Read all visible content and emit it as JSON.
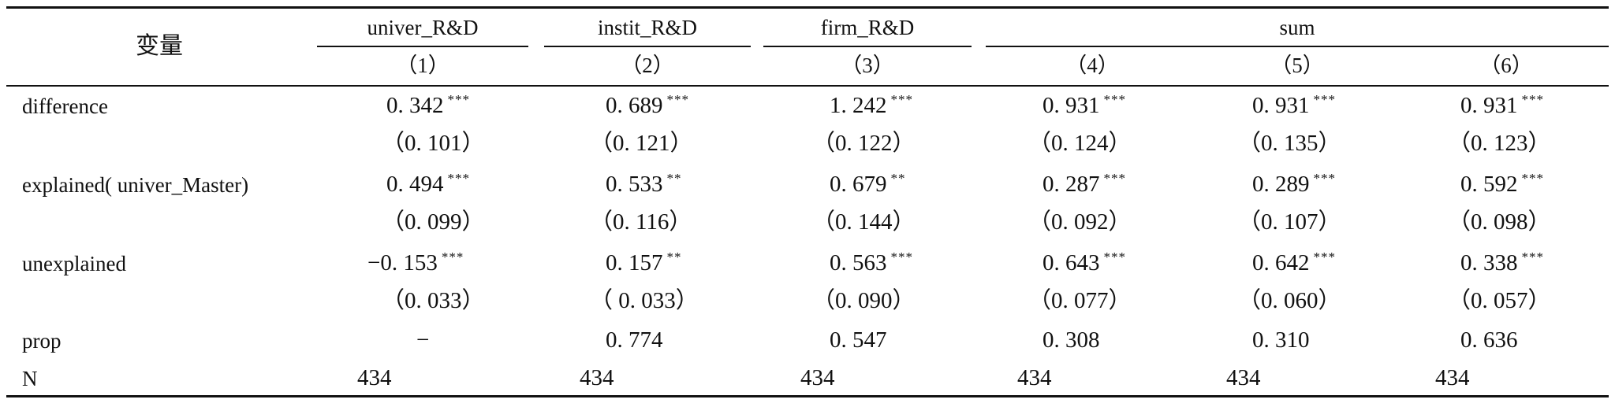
{
  "header": {
    "var_label": "变量",
    "groups": [
      "univer_R&D",
      "instit_R&D",
      "firm_R&D",
      "sum"
    ],
    "col_numbers": [
      "（1）",
      "（2）",
      "（3）",
      "（4）",
      "（5）",
      "（6）"
    ]
  },
  "rows": [
    {
      "label": "difference",
      "values": [
        [
          "0. 342",
          "***"
        ],
        [
          "0. 689",
          "***"
        ],
        [
          "1. 242",
          "***"
        ],
        [
          "0. 931",
          "***"
        ],
        [
          "0. 931",
          "***"
        ],
        [
          "0. 931",
          "***"
        ]
      ]
    },
    {
      "label": "",
      "values": [
        [
          "（0. 101）",
          ""
        ],
        [
          "（0. 121）",
          ""
        ],
        [
          "（0. 122）",
          ""
        ],
        [
          "（0. 124）",
          ""
        ],
        [
          "（0. 135）",
          ""
        ],
        [
          "（0. 123）",
          ""
        ]
      ]
    },
    {
      "label": "explained( univer_Master)",
      "values": [
        [
          "0. 494",
          "***"
        ],
        [
          "0. 533",
          "**"
        ],
        [
          "0. 679",
          "**"
        ],
        [
          "0. 287",
          "***"
        ],
        [
          "0. 289",
          "***"
        ],
        [
          "0. 592",
          "***"
        ]
      ]
    },
    {
      "label": "",
      "values": [
        [
          "（0. 099）",
          ""
        ],
        [
          "（0. 116）",
          ""
        ],
        [
          "（0. 144）",
          ""
        ],
        [
          "（0. 092）",
          ""
        ],
        [
          "（0. 107）",
          ""
        ],
        [
          "（0. 098）",
          ""
        ]
      ]
    },
    {
      "label": "unexplained",
      "values": [
        [
          "−0. 153",
          "***"
        ],
        [
          "0. 157",
          "**"
        ],
        [
          "0. 563",
          "***"
        ],
        [
          "0. 643",
          "***"
        ],
        [
          "0. 642",
          "***"
        ],
        [
          "0. 338",
          "***"
        ]
      ]
    },
    {
      "label": "",
      "values": [
        [
          "（0. 033）",
          ""
        ],
        [
          "（ 0. 033）",
          ""
        ],
        [
          "（0. 090）",
          ""
        ],
        [
          "（0. 077）",
          ""
        ],
        [
          "（0. 060）",
          ""
        ],
        [
          "（0. 057）",
          ""
        ]
      ]
    },
    {
      "label": "prop",
      "values": [
        [
          "−",
          ""
        ],
        [
          "0. 774",
          ""
        ],
        [
          "0. 547",
          ""
        ],
        [
          "0. 308",
          ""
        ],
        [
          "0. 310",
          ""
        ],
        [
          "0. 636",
          ""
        ]
      ]
    },
    {
      "label": "N",
      "values": [
        [
          "434",
          ""
        ],
        [
          "434",
          ""
        ],
        [
          "434",
          ""
        ],
        [
          "434",
          ""
        ],
        [
          "434",
          ""
        ],
        [
          "434",
          ""
        ]
      ]
    }
  ]
}
